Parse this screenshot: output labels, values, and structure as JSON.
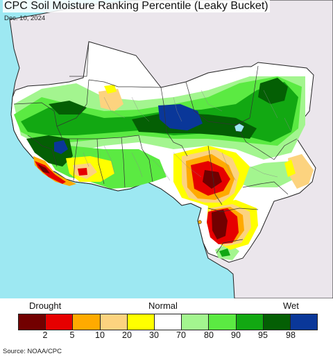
{
  "header": {
    "title": "CPC Soil Moisture Ranking Percentile (Leaky Bucket)",
    "date": "Dec. 10, 2024"
  },
  "map": {
    "colors": {
      "ocean": "#9de8f2",
      "outside_land": "#ebe6ec",
      "land_neutral": "#ffffff",
      "border": "#222222"
    }
  },
  "legend": {
    "labels": {
      "drought": "Drought",
      "normal": "Normal",
      "wet": "Wet"
    },
    "ticks": [
      "2",
      "5",
      "10",
      "20",
      "30",
      "70",
      "80",
      "90",
      "95",
      "98"
    ],
    "colors": [
      "#720000",
      "#e60000",
      "#ffaa00",
      "#fcd37f",
      "#ffff00",
      "#ffffff",
      "#a3f58f",
      "#5bea42",
      "#12a812",
      "#045f04",
      "#0a3799"
    ]
  },
  "footer": {
    "source": "Source: NOAA/CPC"
  }
}
